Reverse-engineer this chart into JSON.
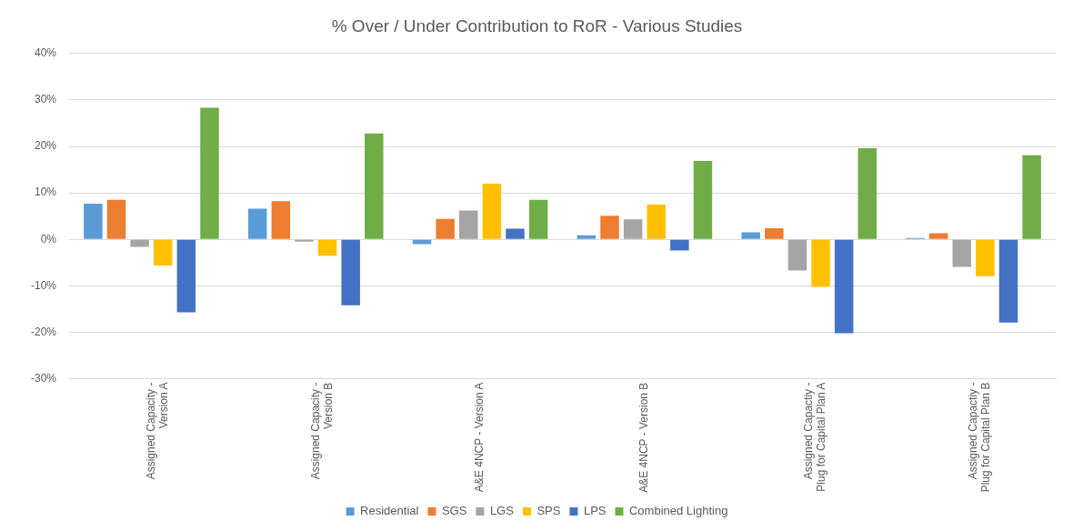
{
  "chart_data": {
    "type": "bar",
    "title": "% Over / Under Contribution to RoR - Various Studies",
    "categories": [
      "Assigned Capacity - Version A",
      "Assigned Capacity - Version B",
      "A&E 4NCP - Version A",
      "A&E 4NCP - Version B",
      "Assigned Capactiy - Plug for Capital Plan A",
      "Assigned Capactiy - Plug for Capital Plan B"
    ],
    "series": [
      {
        "name": "Residential",
        "color": "#5b9bd5",
        "values": [
          7.7,
          6.6,
          -1.0,
          0.9,
          1.5,
          0.3
        ]
      },
      {
        "name": "SGS",
        "color": "#ed7d31",
        "values": [
          8.5,
          8.2,
          4.4,
          5.1,
          2.4,
          1.3
        ]
      },
      {
        "name": "LGS",
        "color": "#a5a5a5",
        "values": [
          -1.6,
          -0.5,
          6.2,
          4.3,
          -6.7,
          -5.9
        ]
      },
      {
        "name": "SPS",
        "color": "#ffc000",
        "values": [
          -5.6,
          -3.5,
          12.0,
          7.5,
          -10.2,
          -7.9
        ]
      },
      {
        "name": "LPS",
        "color": "#4472c4",
        "values": [
          -15.7,
          -14.2,
          2.3,
          -2.4,
          -20.2,
          -17.9
        ]
      },
      {
        "name": "Combined Lighting",
        "color": "#70ad47",
        "values": [
          28.3,
          22.8,
          8.5,
          16.9,
          19.6,
          18.1
        ]
      }
    ],
    "ylim": [
      -30,
      40
    ],
    "yticks": [
      {
        "value": -30,
        "label": "-30%"
      },
      {
        "value": -20,
        "label": "-20%"
      },
      {
        "value": -10,
        "label": "-10%"
      },
      {
        "value": 0,
        "label": "0%"
      },
      {
        "value": 10,
        "label": "10%"
      },
      {
        "value": 20,
        "label": "20%"
      },
      {
        "value": 30,
        "label": "30%"
      },
      {
        "value": 40,
        "label": "40%"
      }
    ],
    "grid": "y",
    "legend": "bottom"
  }
}
